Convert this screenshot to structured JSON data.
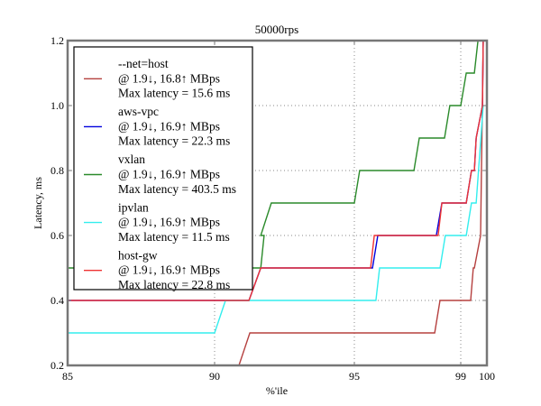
{
  "chart_data": {
    "type": "line",
    "title": "50000rps",
    "xlabel": "%'ile",
    "ylabel": "Latency, ms",
    "xlim": [
      85,
      100
    ],
    "ylim": [
      0.2,
      1.2
    ],
    "grid": true,
    "legend_position": "top-left",
    "x_ticks": [
      {
        "value": 85,
        "label": "85"
      },
      {
        "value": 90,
        "label": "90"
      },
      {
        "value": 95,
        "label": "95"
      },
      {
        "value": 99,
        "label": "99"
      },
      {
        "value": 100,
        "label": "100"
      }
    ],
    "y_ticks": [
      {
        "value": 0.2,
        "label": "0.2"
      },
      {
        "value": 0.4,
        "label": "0.4"
      },
      {
        "value": 0.6,
        "label": "0.6"
      },
      {
        "value": 0.8,
        "label": "0.8"
      },
      {
        "value": 1.0,
        "label": "1.0"
      },
      {
        "value": 1.2,
        "label": "1.2"
      }
    ],
    "series": [
      {
        "name": "--net=host",
        "legend": [
          "--net=host",
          "@ 1.9↓, 16.8↑ MBps",
          "Max latency = 15.6 ms"
        ],
        "color": "#b5403f",
        "points": [
          [
            90.87,
            0.2
          ],
          [
            91.26,
            0.3
          ],
          [
            98.02,
            0.3
          ],
          [
            98.22,
            0.4
          ],
          [
            99.38,
            0.4
          ],
          [
            99.48,
            0.5
          ],
          [
            99.52,
            0.5
          ],
          [
            99.76,
            0.6
          ],
          [
            99.86,
            1.2
          ]
        ]
      },
      {
        "name": "aws-vpc",
        "legend": [
          "aws-vpc",
          "@ 1.9↓, 16.9↑ MBps",
          "Max latency = 22.3 ms"
        ],
        "color": "#0000dd",
        "points": [
          [
            85,
            0.4
          ],
          [
            91.23,
            0.4
          ],
          [
            91.65,
            0.5
          ],
          [
            95.68,
            0.5
          ],
          [
            95.88,
            0.6
          ],
          [
            98.08,
            0.6
          ],
          [
            98.29,
            0.7
          ],
          [
            99.21,
            0.7
          ],
          [
            99.41,
            0.8
          ],
          [
            99.52,
            0.8
          ],
          [
            99.59,
            0.9
          ],
          [
            99.83,
            1.0
          ],
          [
            99.86,
            1.2
          ]
        ]
      },
      {
        "name": "vxlan",
        "legend": [
          "vxlan",
          "@ 1.9↓, 16.9↑ MBps",
          "Max latency = 403.5 ms"
        ],
        "color": "#2a8a2a",
        "points": [
          [
            85,
            0.5
          ],
          [
            91.65,
            0.5
          ],
          [
            91.77,
            0.6
          ],
          [
            91.65,
            0.6
          ],
          [
            92.03,
            0.7
          ],
          [
            95.0,
            0.7
          ],
          [
            95.2,
            0.8
          ],
          [
            97.24,
            0.8
          ],
          [
            97.44,
            0.9
          ],
          [
            98.39,
            0.9
          ],
          [
            98.59,
            1.0
          ],
          [
            99.0,
            1.0
          ],
          [
            99.21,
            1.1
          ],
          [
            99.52,
            1.1
          ],
          [
            99.66,
            1.2
          ]
        ]
      },
      {
        "name": "ipvlan",
        "legend": [
          "ipvlan",
          "@ 1.9↓, 16.9↑ MBps",
          "Max latency = 11.5 ms"
        ],
        "color": "#33eeee",
        "points": [
          [
            85,
            0.3
          ],
          [
            90.0,
            0.3
          ],
          [
            90.39,
            0.4
          ],
          [
            95.81,
            0.4
          ],
          [
            95.95,
            0.5
          ],
          [
            98.22,
            0.5
          ],
          [
            98.42,
            0.6
          ],
          [
            99.21,
            0.6
          ],
          [
            99.41,
            0.7
          ],
          [
            99.59,
            0.7
          ],
          [
            99.86,
            1.0
          ]
        ]
      },
      {
        "name": "host-gw",
        "legend": [
          "host-gw",
          "@ 1.9↓, 16.9↑ MBps",
          "Max latency = 22.8 ms"
        ],
        "color": "#ee3333",
        "points": [
          [
            85,
            0.4
          ],
          [
            91.23,
            0.4
          ],
          [
            91.65,
            0.5
          ],
          [
            95.61,
            0.5
          ],
          [
            95.75,
            0.6
          ],
          [
            98.15,
            0.6
          ],
          [
            98.29,
            0.7
          ],
          [
            99.21,
            0.7
          ],
          [
            99.41,
            0.8
          ],
          [
            99.52,
            0.8
          ],
          [
            99.59,
            0.9
          ],
          [
            99.83,
            1.0
          ],
          [
            99.86,
            1.2
          ]
        ]
      }
    ]
  }
}
